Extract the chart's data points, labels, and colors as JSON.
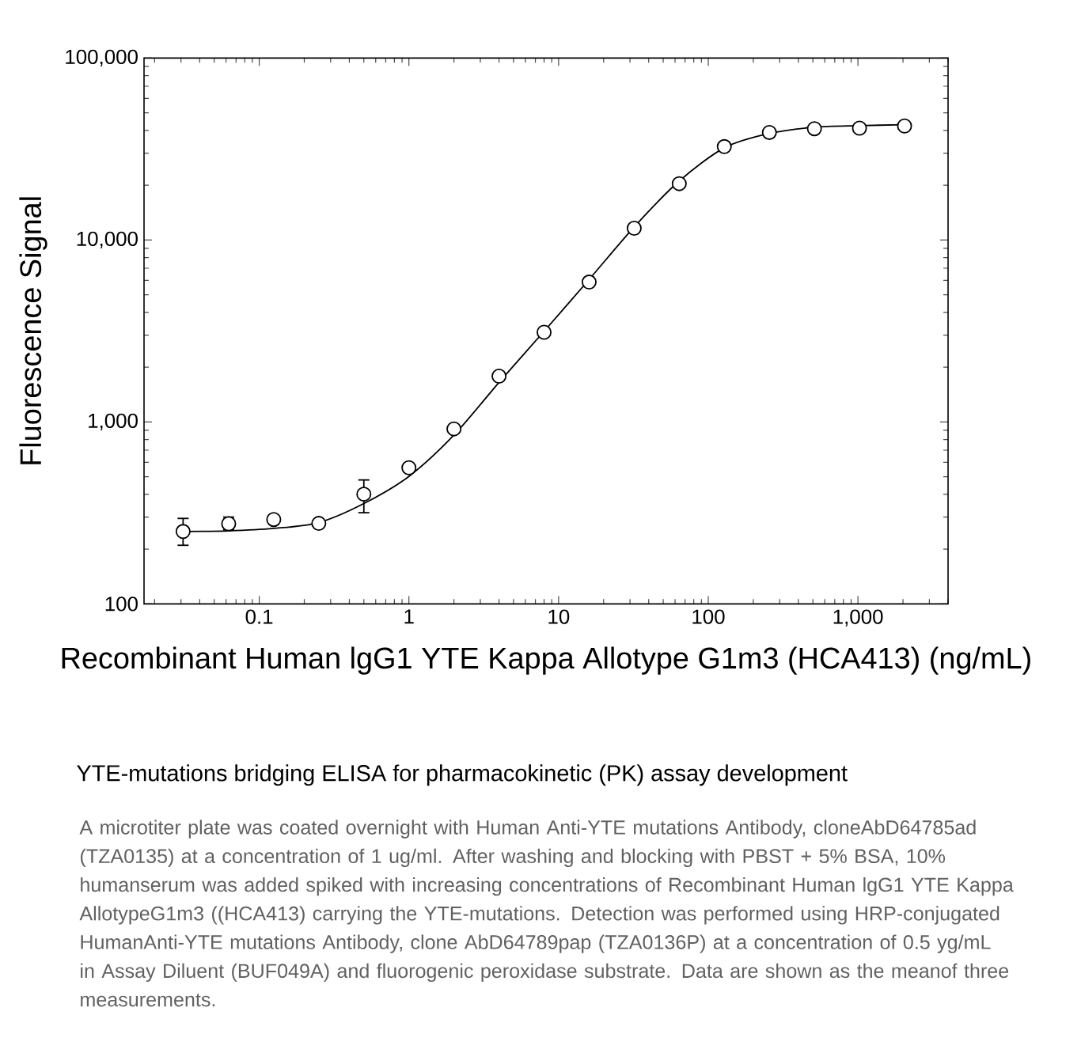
{
  "chart_data": {
    "type": "scatter",
    "title": "YTE-mutations bridging ELISA for pharmacokinetic (PK) assay development",
    "xlabel": "Recombinant Human lgG1 YTE Kappa Allotype G1m3 (HCA413) (ng/mL)",
    "ylabel": "Fluorescence Signal",
    "log": "xy",
    "xlim": [
      0.017,
      4000
    ],
    "ylim": [
      100,
      100000
    ],
    "xticks": [
      0.1,
      1,
      10,
      100,
      {
        "value": 1000,
        "label": "1,000"
      }
    ],
    "yticks": [
      100,
      {
        "value": 1000,
        "label": "1,000"
      },
      {
        "value": 10000,
        "label": "10,000"
      },
      {
        "value": 100000,
        "label": "100,000"
      }
    ],
    "series": [
      {
        "type": "line",
        "color": "#000000",
        "marker": "none",
        "x": [
          0.031,
          0.0625,
          0.125,
          0.25,
          0.5,
          1,
          2,
          4,
          8,
          16,
          32,
          64,
          128,
          256,
          512,
          1024,
          2048
        ],
        "values": [
          250,
          252,
          260,
          280,
          356,
          502,
          847,
          1650,
          3150,
          6070,
          11800,
          21100,
          32100,
          38500,
          41700,
          42500,
          43000
        ]
      },
      {
        "color": "#000000",
        "marker": "circle",
        "x": [
          0.031,
          0.0625,
          0.125,
          0.25,
          0.5,
          1,
          2,
          4,
          8,
          16,
          32,
          64,
          128,
          256,
          512,
          1024,
          2048
        ],
        "values": [
          250,
          276,
          291,
          277,
          401,
          560,
          916,
          1786,
          3110,
          5870,
          11600,
          20400,
          32600,
          39000,
          40900,
          41200,
          42300
        ],
        "errors": [
          [
            210,
            295
          ],
          [
            255,
            300
          ],
          null,
          null,
          [
            317,
            480
          ],
          null,
          null,
          null,
          null,
          null,
          null,
          null,
          null,
          null,
          null,
          null,
          null
        ]
      }
    ],
    "annotations": [
      "A microtiter plate was coated overnight with Human Anti-YTE mutations Antibody, cloneAbD64785ad (TZA0135) at a concentration of 1 ug/ml. After washing and blocking with PBST + 5% BSA, 10% humanserum was added spiked with increasing concentrations of Recombinant Human lgG1 YTE Kappa AllotypeG1m3 ((HCA413) carrying the YTE-mutations. Detection was performed using HRP-conjugated HumanAnti-YTE mutations Antibody, clone AbD64789pap (TZA0136P) at a concentration of 0.5 yg/mL in Assay Diluent (BUF049A) and fluorogenic peroxidase substrate. Data are shown as the meanof three measurements."
    ]
  }
}
